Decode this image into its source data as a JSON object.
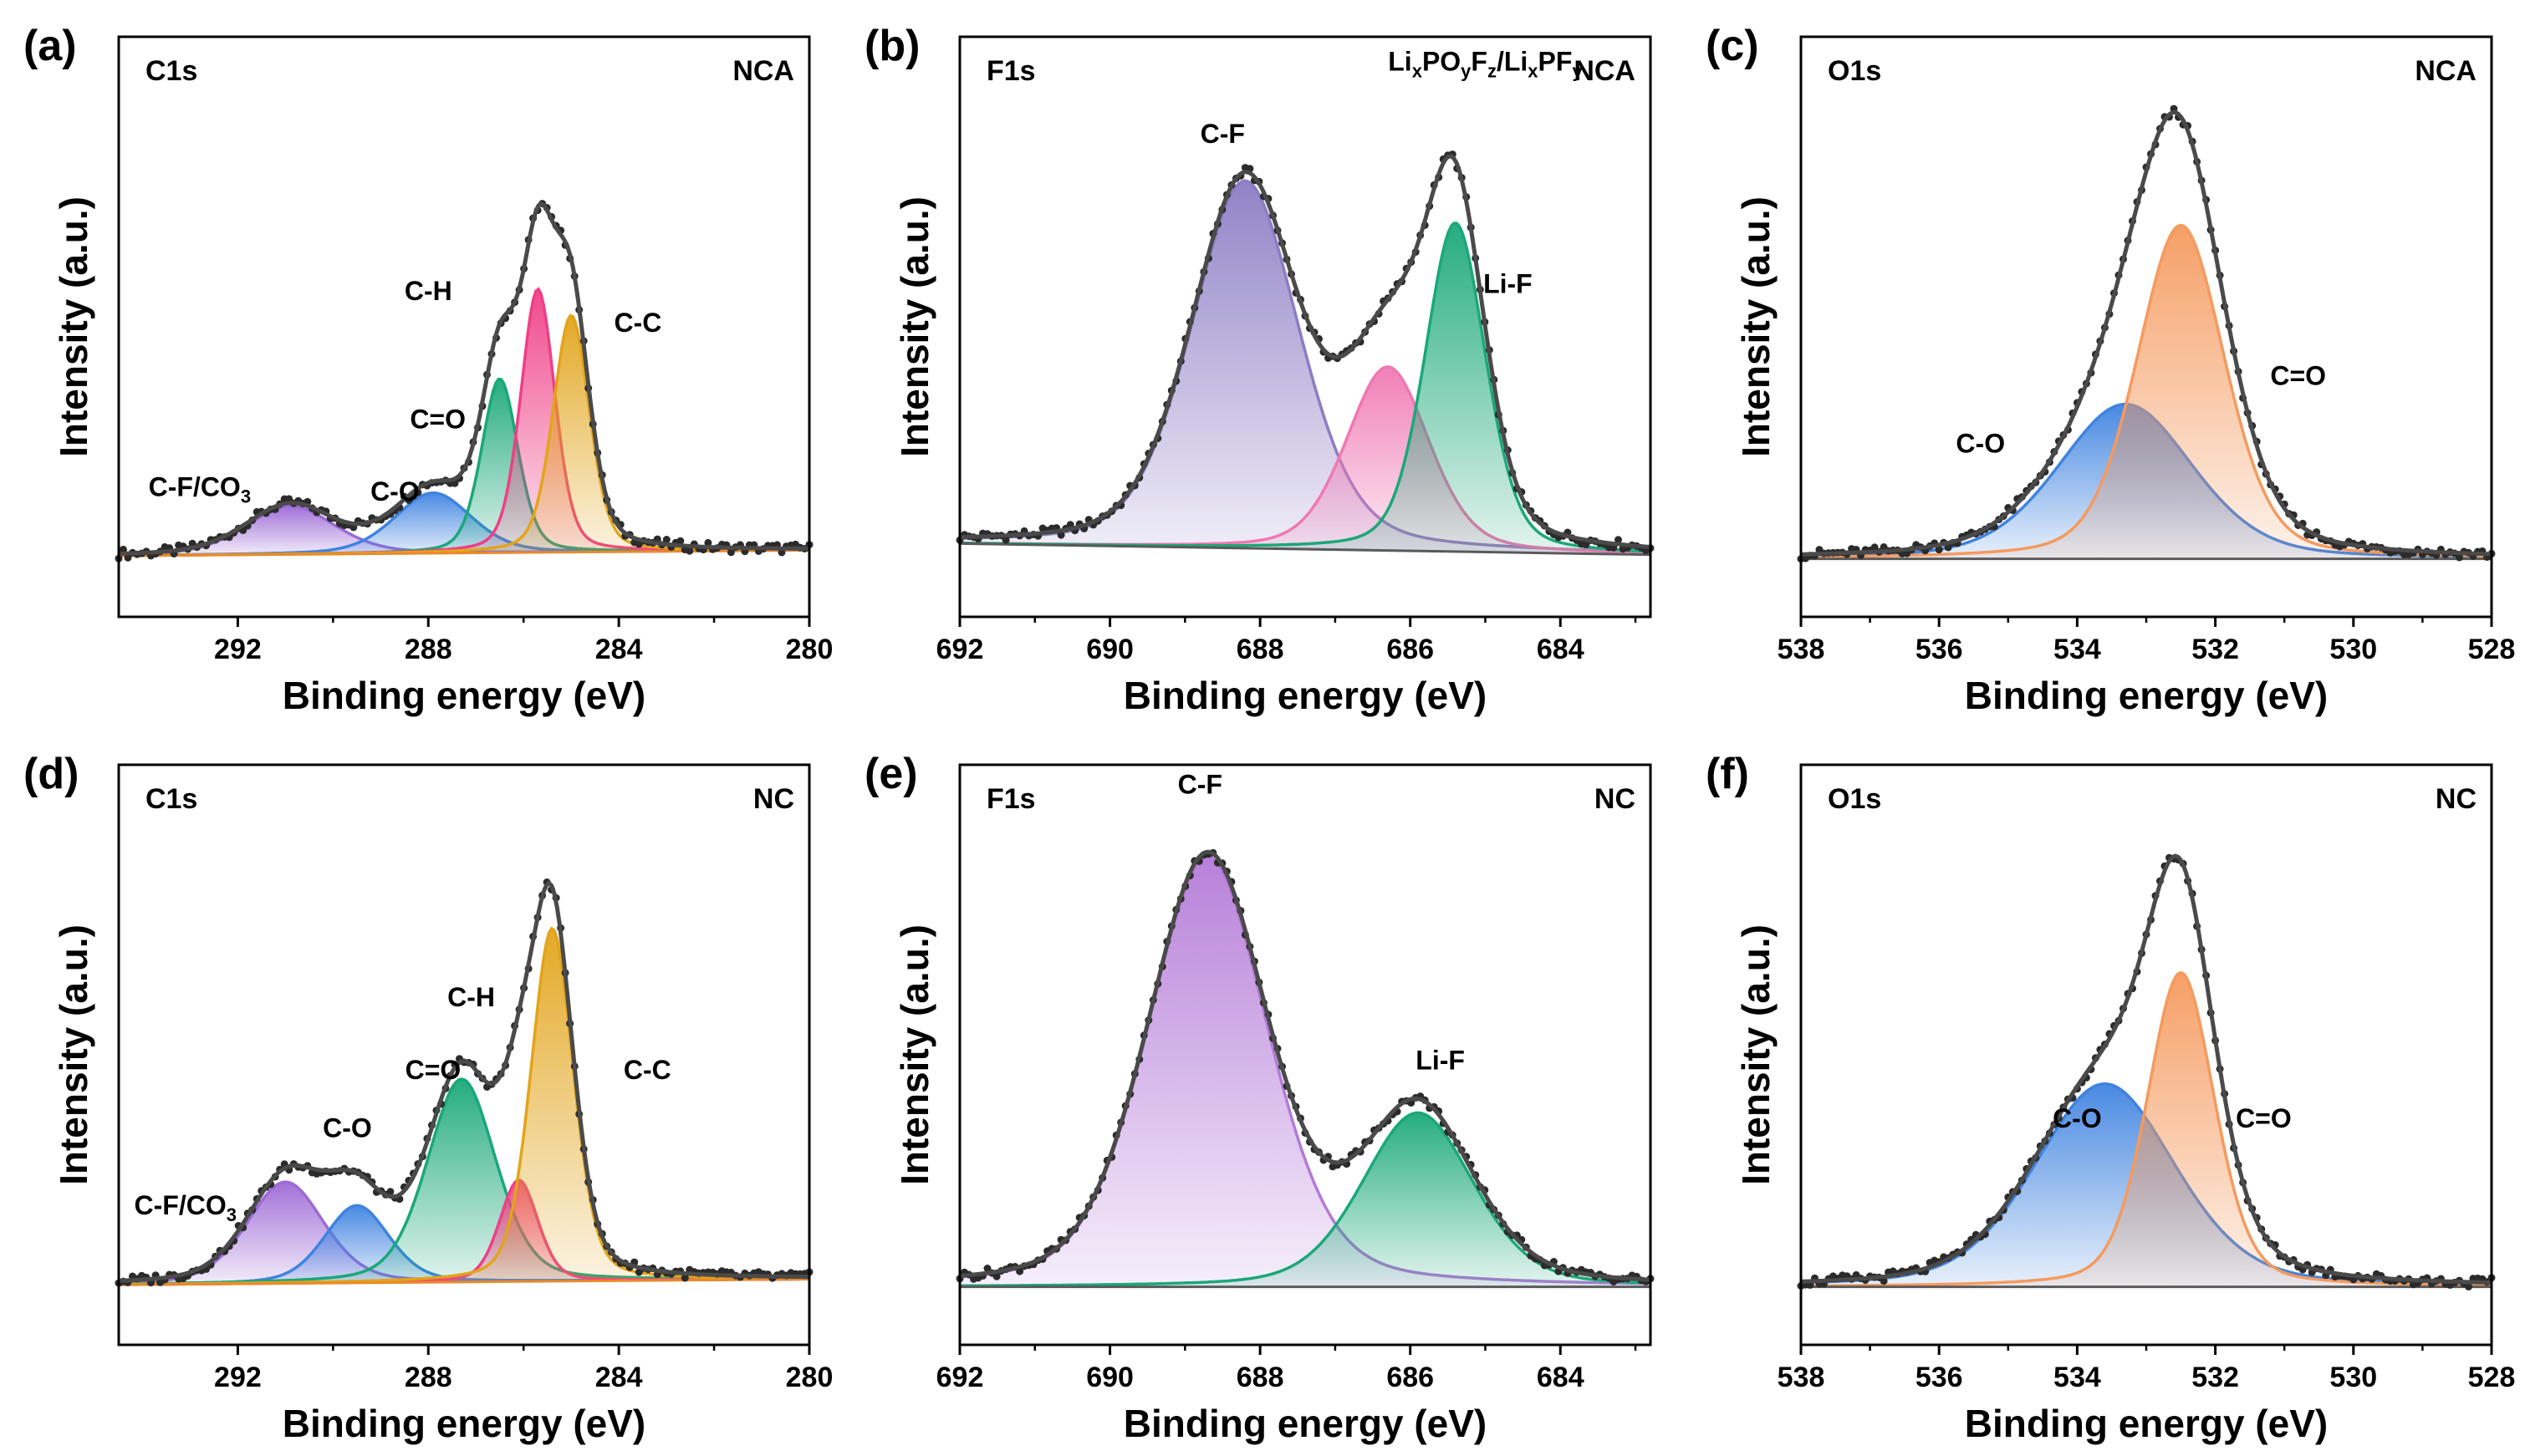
{
  "chart_data": [
    {
      "panel_label": "(a)",
      "core_level": "C1s",
      "sample": "NCA",
      "type": "line",
      "xlabel": "Binding energy (eV)",
      "ylabel": "Intensity (a.u.)",
      "xlim": [
        294.5,
        280
      ],
      "xticks": [
        "292",
        "288",
        "284",
        "280"
      ],
      "ylim": [
        -0.12,
        1.08
      ],
      "baseline": {
        "y0": 0.012,
        "slope": -0.0008
      },
      "peaks": [
        {
          "name": "C-F/CO3",
          "center": 290.9,
          "fwhm": 2.2,
          "height": 0.1,
          "color": "#9d6ad6"
        },
        {
          "name": "C-O",
          "center": 287.9,
          "fwhm": 1.9,
          "height": 0.125,
          "color": "#3f83e0"
        },
        {
          "name": "C=O",
          "center": 286.5,
          "fwhm": 0.9,
          "height": 0.36,
          "color": "#1aa878"
        },
        {
          "name": "C-H",
          "center": 285.7,
          "fwhm": 0.85,
          "height": 0.545,
          "color": "#ef3f86"
        },
        {
          "name": "C-C",
          "center": 285.0,
          "fwhm": 0.9,
          "height": 0.49,
          "color": "#e2a41a"
        }
      ],
      "labels": [
        {
          "text": "C-F/CO",
          "sub": "3",
          "x": 292.8,
          "y": 0.13
        },
        {
          "text": "C-O",
          "x": 288.7,
          "y": 0.12
        },
        {
          "text": "C=O",
          "x": 287.8,
          "y": 0.27
        },
        {
          "text": "C-H",
          "x": 288.0,
          "y": 0.535
        },
        {
          "text": "C-C",
          "x": 283.6,
          "y": 0.47
        }
      ]
    },
    {
      "panel_label": "(b)",
      "core_level": "F1s",
      "sample": "NCA",
      "type": "line",
      "xlabel": "Binding energy (eV)",
      "ylabel": "Intensity (a.u.)",
      "xlim": [
        692,
        682.8
      ],
      "xticks": [
        "692",
        "690",
        "688",
        "686",
        "684"
      ],
      "ylim": [
        -0.12,
        1.08
      ],
      "baseline": {
        "y0": 0.02,
        "slope": 0.0025
      },
      "peaks": [
        {
          "name": "C-F",
          "center": 688.2,
          "fwhm": 1.7,
          "height": 0.76,
          "color": "#8c7cc4"
        },
        {
          "name": "LixPOyFz/LixPFy",
          "center": 686.3,
          "fwhm": 1.3,
          "height": 0.38,
          "color": "#f078b2"
        },
        {
          "name": "Li-F",
          "center": 685.4,
          "fwhm": 0.95,
          "height": 0.68,
          "color": "#1aa878"
        }
      ],
      "labels": [
        {
          "text": "C-F",
          "x": 688.5,
          "y": 0.86
        },
        {
          "text": "Li",
          "parts": [
            "Li",
            "x",
            "PO",
            "y",
            "F",
            "z",
            "/Li",
            "x",
            "PF",
            "y"
          ],
          "x": 685.0,
          "y": 1.01
        },
        {
          "text": "Li-F",
          "x": 684.7,
          "y": 0.55
        }
      ]
    },
    {
      "panel_label": "(c)",
      "core_level": "O1s",
      "sample": "NCA",
      "type": "line",
      "xlabel": "Binding energy (eV)",
      "ylabel": "Intensity (a.u.)",
      "xlim": [
        538,
        528
      ],
      "xticks": [
        "538",
        "536",
        "534",
        "532",
        "530",
        "528"
      ],
      "ylim": [
        -0.12,
        1.08
      ],
      "baseline": {
        "y0": 0.0,
        "slope": 0.0
      },
      "peaks": [
        {
          "name": "C-O",
          "center": 533.3,
          "fwhm": 2.3,
          "height": 0.32,
          "color": "#3f83e0"
        },
        {
          "name": "C=O",
          "center": 532.5,
          "fwhm": 1.5,
          "height": 0.69,
          "color": "#f59a5e"
        }
      ],
      "labels": [
        {
          "text": "C-O",
          "x": 535.4,
          "y": 0.22
        },
        {
          "text": "C=O",
          "x": 530.8,
          "y": 0.36
        }
      ]
    },
    {
      "panel_label": "(d)",
      "core_level": "C1s",
      "sample": "NC",
      "type": "line",
      "xlabel": "Binding energy (eV)",
      "ylabel": "Intensity (a.u.)",
      "xlim": [
        294.5,
        280
      ],
      "xticks": [
        "292",
        "288",
        "284",
        "280"
      ],
      "ylim": [
        -0.12,
        1.08
      ],
      "baseline": {
        "y0": 0.01,
        "slope": -0.0008
      },
      "peaks": [
        {
          "name": "C-F/CO3",
          "center": 291.0,
          "fwhm": 1.9,
          "height": 0.21,
          "color": "#9d6ad6"
        },
        {
          "name": "C-O",
          "center": 289.5,
          "fwhm": 1.6,
          "height": 0.16,
          "color": "#3f83e0"
        },
        {
          "name": "C=O",
          "center": 287.3,
          "fwhm": 1.7,
          "height": 0.42,
          "color": "#1aa878"
        },
        {
          "name": "C-H",
          "center": 286.1,
          "fwhm": 0.95,
          "height": 0.21,
          "color": "#ef3f86"
        },
        {
          "name": "C-C",
          "center": 285.4,
          "fwhm": 1.05,
          "height": 0.73,
          "color": "#e2a41a"
        }
      ],
      "labels": [
        {
          "text": "C-F/CO",
          "sub": "3",
          "x": 293.1,
          "y": 0.15
        },
        {
          "text": "C-O",
          "x": 289.7,
          "y": 0.31
        },
        {
          "text": "C=O",
          "x": 287.9,
          "y": 0.43
        },
        {
          "text": "C-H",
          "x": 287.1,
          "y": 0.58
        },
        {
          "text": "C-C",
          "x": 283.4,
          "y": 0.43
        }
      ]
    },
    {
      "panel_label": "(e)",
      "core_level": "F1s",
      "sample": "NC",
      "type": "line",
      "xlabel": "Binding energy (eV)",
      "ylabel": "Intensity (a.u.)",
      "xlim": [
        692,
        682.8
      ],
      "xticks": [
        "692",
        "690",
        "688",
        "686",
        "684"
      ],
      "ylim": [
        -0.12,
        1.08
      ],
      "baseline": {
        "y0": 0.0,
        "slope": 0.0
      },
      "peaks": [
        {
          "name": "C-F",
          "center": 688.7,
          "fwhm": 1.9,
          "height": 0.89,
          "color": "#b47ad8"
        },
        {
          "name": "Li-F",
          "center": 685.9,
          "fwhm": 1.75,
          "height": 0.36,
          "color": "#1aa878"
        }
      ],
      "labels": [
        {
          "text": "C-F",
          "x": 688.8,
          "y": 1.02
        },
        {
          "text": "Li-F",
          "x": 685.6,
          "y": 0.45
        }
      ]
    },
    {
      "panel_label": "(f)",
      "core_level": "O1s",
      "sample": "NC",
      "type": "line",
      "xlabel": "Binding energy (eV)",
      "ylabel": "Intensity (a.u.)",
      "xlim": [
        538,
        528
      ],
      "xticks": [
        "538",
        "536",
        "534",
        "532",
        "530",
        "528"
      ],
      "ylim": [
        -0.12,
        1.08
      ],
      "baseline": {
        "y0": 0.0,
        "slope": 0.0
      },
      "peaks": [
        {
          "name": "C-O",
          "center": 533.6,
          "fwhm": 2.4,
          "height": 0.42,
          "color": "#3f83e0"
        },
        {
          "name": "C=O",
          "center": 532.5,
          "fwhm": 1.15,
          "height": 0.65,
          "color": "#f59a5e"
        }
      ],
      "labels": [
        {
          "text": "C-O",
          "x": 534.0,
          "y": 0.33
        },
        {
          "text": "C=O",
          "x": 531.3,
          "y": 0.33
        }
      ]
    }
  ]
}
